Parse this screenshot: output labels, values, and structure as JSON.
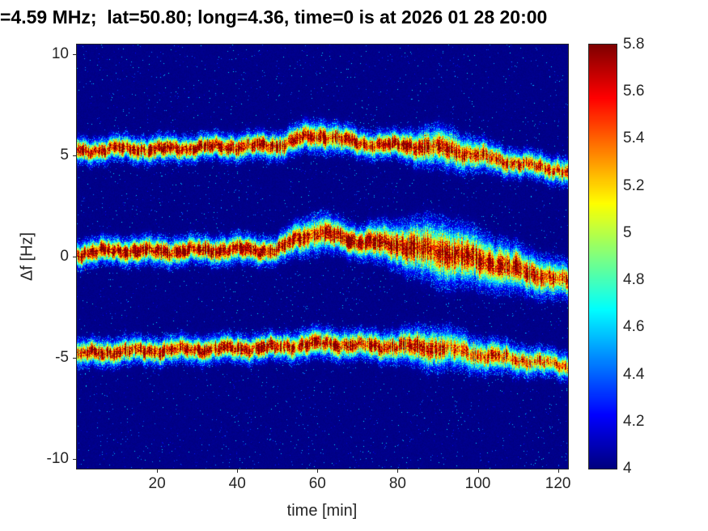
{
  "chart_data": {
    "type": "heatmap",
    "title": "=4.59 MHz;  lat=50.80; long=4.36, time=0 is at 2026 01 28 20:00",
    "xlabel": "time [min]",
    "ylabel": "Δf [Hz]",
    "xlim": [
      0,
      122.5
    ],
    "ylim": [
      -10.5,
      10.5
    ],
    "clim": [
      4,
      5.8
    ],
    "x_ticks": [
      20,
      40,
      60,
      80,
      100,
      120
    ],
    "y_ticks": [
      10,
      5,
      0,
      -5,
      -10
    ],
    "colorbar_ticks": [
      {
        "value": 5.8,
        "label": "5.8"
      },
      {
        "value": 5.6,
        "label": "5.6"
      },
      {
        "value": 5.4,
        "label": "5.4"
      },
      {
        "value": 5.2,
        "label": "5.2"
      },
      {
        "value": 5.0,
        "label": "5"
      },
      {
        "value": 4.8,
        "label": "4.8"
      },
      {
        "value": 4.6,
        "label": "4.6"
      },
      {
        "value": 4.4,
        "label": "4.4"
      },
      {
        "value": 4.2,
        "label": "4.2"
      },
      {
        "value": 4.0,
        "label": "4"
      }
    ],
    "colormap": "jet",
    "grid": false,
    "background_value": 4,
    "noise_seed": 20260128,
    "bands": [
      {
        "name": "upper-doppler-trace",
        "t": [
          0,
          10,
          20,
          30,
          40,
          50,
          57,
          62,
          70,
          80,
          87,
          92,
          100,
          110,
          120,
          122.5
        ],
        "center": [
          5.2,
          5.35,
          5.3,
          5.4,
          5.45,
          5.5,
          5.9,
          6.0,
          5.6,
          5.5,
          5.45,
          5.35,
          5.0,
          4.6,
          4.3,
          4.2
        ],
        "width": [
          0.28,
          0.28,
          0.3,
          0.28,
          0.3,
          0.3,
          0.33,
          0.35,
          0.3,
          0.3,
          0.42,
          0.45,
          0.35,
          0.3,
          0.3,
          0.3
        ],
        "amp": [
          1.8,
          1.85,
          1.8,
          1.85,
          1.85,
          1.8,
          1.8,
          1.75,
          1.8,
          1.85,
          1.7,
          1.7,
          1.65,
          1.6,
          1.55,
          1.5
        ]
      },
      {
        "name": "center-doppler-trace",
        "t": [
          0,
          10,
          20,
          30,
          40,
          50,
          55,
          60,
          65,
          70,
          80,
          85,
          90,
          95,
          100,
          110,
          120,
          122.5
        ],
        "center": [
          0.15,
          0.3,
          0.25,
          0.3,
          0.35,
          0.3,
          0.9,
          1.2,
          1.0,
          0.75,
          0.6,
          0.4,
          0.25,
          0.1,
          -0.15,
          -0.65,
          -1.15,
          -1.25
        ],
        "width": [
          0.3,
          0.3,
          0.32,
          0.3,
          0.32,
          0.3,
          0.38,
          0.42,
          0.38,
          0.35,
          0.5,
          0.6,
          0.7,
          0.65,
          0.6,
          0.5,
          0.42,
          0.4
        ],
        "amp": [
          1.85,
          1.9,
          1.85,
          1.9,
          1.85,
          1.85,
          1.85,
          1.8,
          1.85,
          1.9,
          1.85,
          1.8,
          1.8,
          1.75,
          1.75,
          1.7,
          1.65,
          1.6
        ]
      },
      {
        "name": "lower-doppler-trace",
        "t": [
          0,
          10,
          20,
          30,
          40,
          50,
          57,
          62,
          70,
          80,
          87,
          92,
          100,
          110,
          120,
          122.5
        ],
        "center": [
          -4.85,
          -4.7,
          -4.65,
          -4.6,
          -4.55,
          -4.5,
          -4.35,
          -4.3,
          -4.4,
          -4.45,
          -4.5,
          -4.55,
          -4.85,
          -5.1,
          -5.35,
          -5.4
        ],
        "width": [
          0.3,
          0.3,
          0.3,
          0.3,
          0.3,
          0.3,
          0.33,
          0.33,
          0.32,
          0.35,
          0.45,
          0.45,
          0.38,
          0.33,
          0.3,
          0.3
        ],
        "amp": [
          1.75,
          1.8,
          1.75,
          1.8,
          1.8,
          1.75,
          1.75,
          1.7,
          1.75,
          1.7,
          1.65,
          1.6,
          1.55,
          1.5,
          1.45,
          1.4
        ]
      }
    ]
  }
}
